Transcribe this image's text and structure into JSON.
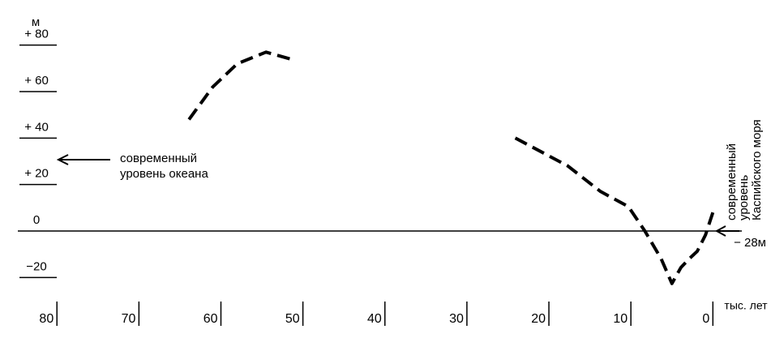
{
  "chart_data": {
    "type": "line",
    "y_label": "м",
    "x_label": "тыс. лет",
    "xlim": [
      82,
      -6
    ],
    "xticks": [
      80,
      70,
      60,
      50,
      40,
      30,
      20,
      10,
      0
    ],
    "ylim": [
      -30,
      90
    ],
    "yticks": [
      {
        "value": 80,
        "label": "+ 80"
      },
      {
        "value": 60,
        "label": "+ 60"
      },
      {
        "value": 40,
        "label": "+ 40"
      },
      {
        "value": 20,
        "label": "+ 20"
      },
      0,
      {
        "value": -20,
        "label": "−20"
      }
    ],
    "x": [
      63.9,
      61,
      58,
      54.5,
      51.5,
      null,
      24.1,
      17.7,
      13.7,
      10.3,
      8.3,
      6.3,
      5,
      3.9,
      2.9,
      1.9,
      0.9,
      0
    ],
    "series": [
      {
        "color": "#000000",
        "values": [
          48,
          62,
          72,
          77,
          74,
          null,
          40,
          28,
          17,
          10.5,
          0,
          -12,
          -22.6,
          -15.7,
          -12,
          -8.7,
          -1.7,
          8
        ]
      }
    ],
    "annotations": [
      "современный",
      "уровень океана",
      "современный",
      "уровень",
      "Каспийского моря",
      "− 28м"
    ]
  }
}
